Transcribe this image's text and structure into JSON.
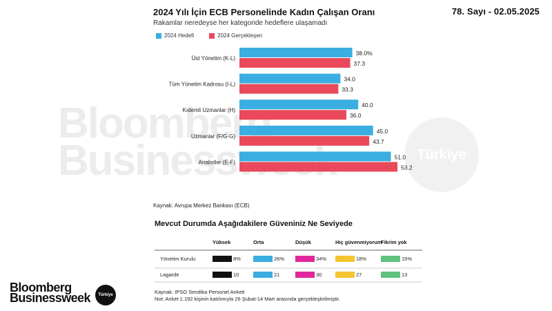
{
  "issue_label": "78. Sayı - 02.05.2025",
  "watermark": {
    "line1": "Bloomberg",
    "line2": "Businessweek",
    "circle": "Türkiye"
  },
  "logo": {
    "line1": "Bloomberg",
    "line2": "Businessweek",
    "circle": "Türkiye"
  },
  "chart_data": [
    {
      "type": "bar",
      "orientation": "horizontal",
      "title": "2024 Yılı İçin ECB Personelinde Kadın Çalışan Oranı",
      "subtitle": "Rakamlar neredeyse her kategoride hedeflere ulaşamadı",
      "categories": [
        "Üst Yönetim (K-L)",
        "Tüm Yönetim Kadrosu (I-L)",
        "Kıdemli Uzmanlar (H)",
        "Uzmanlar (F/G-G)",
        "Analistler (E-F)"
      ],
      "series": [
        {
          "name": "2024 Hedefi",
          "color": "#3aaee0",
          "values": [
            38.0,
            34.0,
            40.0,
            45.0,
            51.0
          ],
          "labels": [
            "38.0%",
            "34.0",
            "40.0",
            "45.0",
            "51.0"
          ]
        },
        {
          "name": "2024 Gerçekleşen",
          "color": "#e9495a",
          "values": [
            37.3,
            33.3,
            36.0,
            43.7,
            53.2
          ],
          "labels": [
            "37.3",
            "33.3",
            "36.0",
            "43.7",
            "53.2"
          ]
        }
      ],
      "xlim": [
        0,
        53.2
      ],
      "legend_position": "top-left",
      "source": "Kaynak: Avrupa Merkez Bankası (ECB)"
    },
    {
      "type": "table",
      "title": "Mevcut Durumda Aşağıdakilere Güveniniz Ne Seviyede",
      "columns": [
        "Yüksek",
        "Orta",
        "Düşük",
        "Hiç güvenmiyorum",
        "Fikrim yok"
      ],
      "colors": [
        "#111111",
        "#3aaee0",
        "#e0289a",
        "#f5c431",
        "#5fc27e"
      ],
      "rows": [
        {
          "label": "Yönetim Kurulu",
          "values": [
            8,
            26,
            34,
            18,
            15
          ],
          "labels": [
            "8%",
            "26%",
            "34%",
            "18%",
            "15%"
          ]
        },
        {
          "label": "Lagarde",
          "values": [
            10,
            21,
            30,
            27,
            13
          ],
          "labels": [
            "10",
            "21",
            "30",
            "27",
            "13"
          ]
        }
      ],
      "source": "Kaynak: IPSO Sendika Personel Anketi",
      "note": "Not: Anket 1.192 kişinin katılımıyla 26 Şubat-14 Mart arasında gerçekleştirilmiştir."
    }
  ]
}
